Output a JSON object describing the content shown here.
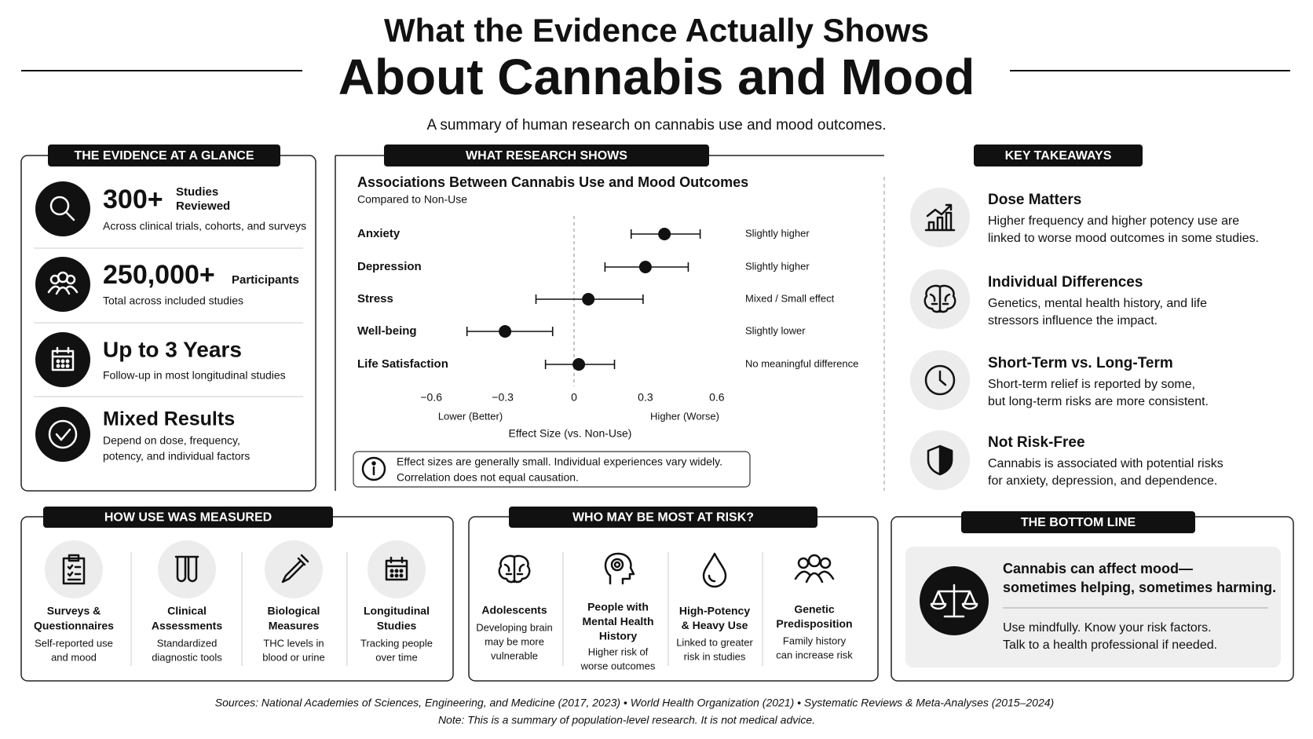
{
  "header": {
    "title_line1": "What the Evidence Actually Shows",
    "title_line2": "About Cannabis and Mood",
    "subtitle": "A summary of human research on cannabis use and mood outcomes."
  },
  "glance": {
    "heading": "THE EVIDENCE AT A GLANCE",
    "items": [
      {
        "value": "300+",
        "label": [
          "Studies",
          "Reviewed"
        ],
        "desc": [
          "Across clinical trials, cohorts, and surveys"
        ]
      },
      {
        "value": "250,000+",
        "label": [
          "Participants"
        ],
        "desc": [
          "Total across included studies"
        ]
      },
      {
        "value": "Up to 3 Years",
        "desc": [
          "Follow-up in most longitudinal studies"
        ]
      },
      {
        "value": "Mixed Results",
        "desc": [
          "Depend on dose, frequency,",
          "potency, and individual factors"
        ]
      }
    ]
  },
  "research": {
    "heading": "WHAT RESEARCH SHOWS",
    "note": [
      "Effect sizes are generally small. Individual experiences vary widely.",
      "Correlation does not equal causation."
    ]
  },
  "chart_data": {
    "type": "forest",
    "title": "Associations Between Cannabis Use and Mood Outcomes",
    "subtitle": "Compared to Non-Use",
    "categories": [
      "Anxiety",
      "Depression",
      "Stress",
      "Well-being",
      "Life Satisfaction"
    ],
    "values": [
      0.38,
      0.3,
      0.06,
      -0.29,
      0.02
    ],
    "low": [
      0.24,
      0.13,
      -0.16,
      -0.45,
      -0.12
    ],
    "high": [
      0.53,
      0.48,
      0.29,
      -0.09,
      0.17
    ],
    "annotations": [
      "Slightly higher",
      "Slightly higher",
      "Mixed / Small effect",
      "Slightly lower",
      "No meaningful difference"
    ],
    "xlim": [
      -0.62,
      0.62
    ],
    "xticks": [
      {
        "value": -0.6,
        "label": "−0.6"
      },
      {
        "value": -0.3,
        "label": "−0.3"
      },
      0,
      0.3,
      0.6
    ],
    "xlabel": "Effect Size (vs. Non-Use)",
    "x_direction_labels": [
      "Lower (Better)",
      "Higher (Worse)"
    ],
    "reference_line": 0,
    "color": "#111111"
  },
  "takeaways": {
    "heading": "KEY TAKEAWAYS",
    "items": [
      {
        "title": "Dose Matters",
        "desc": [
          "Higher frequency and higher potency use are",
          "linked to worse mood outcomes in some studies."
        ]
      },
      {
        "title": "Individual Differences",
        "desc": [
          "Genetics, mental health history, and life",
          "stressors influence the impact."
        ]
      },
      {
        "title": "Short-Term vs. Long-Term",
        "desc": [
          "Short-term relief is reported by some,",
          "but long-term risks are more consistent."
        ]
      },
      {
        "title": "Not Risk-Free",
        "desc": [
          "Cannabis is associated with potential risks",
          "for anxiety, depression, and dependence."
        ]
      }
    ]
  },
  "measured": {
    "heading": "HOW USE WAS MEASURED",
    "items": [
      {
        "title": [
          "Surveys &",
          "Questionnaires"
        ],
        "desc": [
          "Self-reported use",
          "and mood"
        ]
      },
      {
        "title": [
          "Clinical",
          "Assessments"
        ],
        "desc": [
          "Standardized",
          "diagnostic tools"
        ]
      },
      {
        "title": [
          "Biological",
          "Measures"
        ],
        "desc": [
          "THC levels in",
          "blood or urine"
        ]
      },
      {
        "title": [
          "Longitudinal",
          "Studies"
        ],
        "desc": [
          "Tracking people",
          "over time"
        ]
      }
    ]
  },
  "risk": {
    "heading": "WHO MAY BE MOST AT RISK?",
    "items": [
      {
        "title": [
          "Adolescents"
        ],
        "desc": [
          "Developing brain",
          "may be more",
          "vulnerable"
        ]
      },
      {
        "title": [
          "People with",
          "Mental Health",
          "History"
        ],
        "desc": [
          "Higher risk of",
          "worse outcomes"
        ]
      },
      {
        "title": [
          "High-Potency",
          "& Heavy Use"
        ],
        "desc": [
          "Linked to greater",
          "risk in studies"
        ]
      },
      {
        "title": [
          "Genetic",
          "Predisposition"
        ],
        "desc": [
          "Family history",
          "can increase risk"
        ]
      }
    ]
  },
  "bottom_line": {
    "heading": "THE BOTTOM LINE",
    "headline": [
      "Cannabis can affect mood—",
      "sometimes helping, sometimes harming."
    ],
    "desc": [
      "Use mindfully. Know your risk factors.",
      "Talk to a health professional if needed."
    ]
  },
  "footer": {
    "sources": "Sources: National Academies of Sciences, Engineering, and Medicine (2017, 2023) • World Health Organization (2021) • Systematic Reviews & Meta-Analyses (2015–2024)",
    "note": "Note: This is a summary of population-level research. It is not medical advice."
  }
}
